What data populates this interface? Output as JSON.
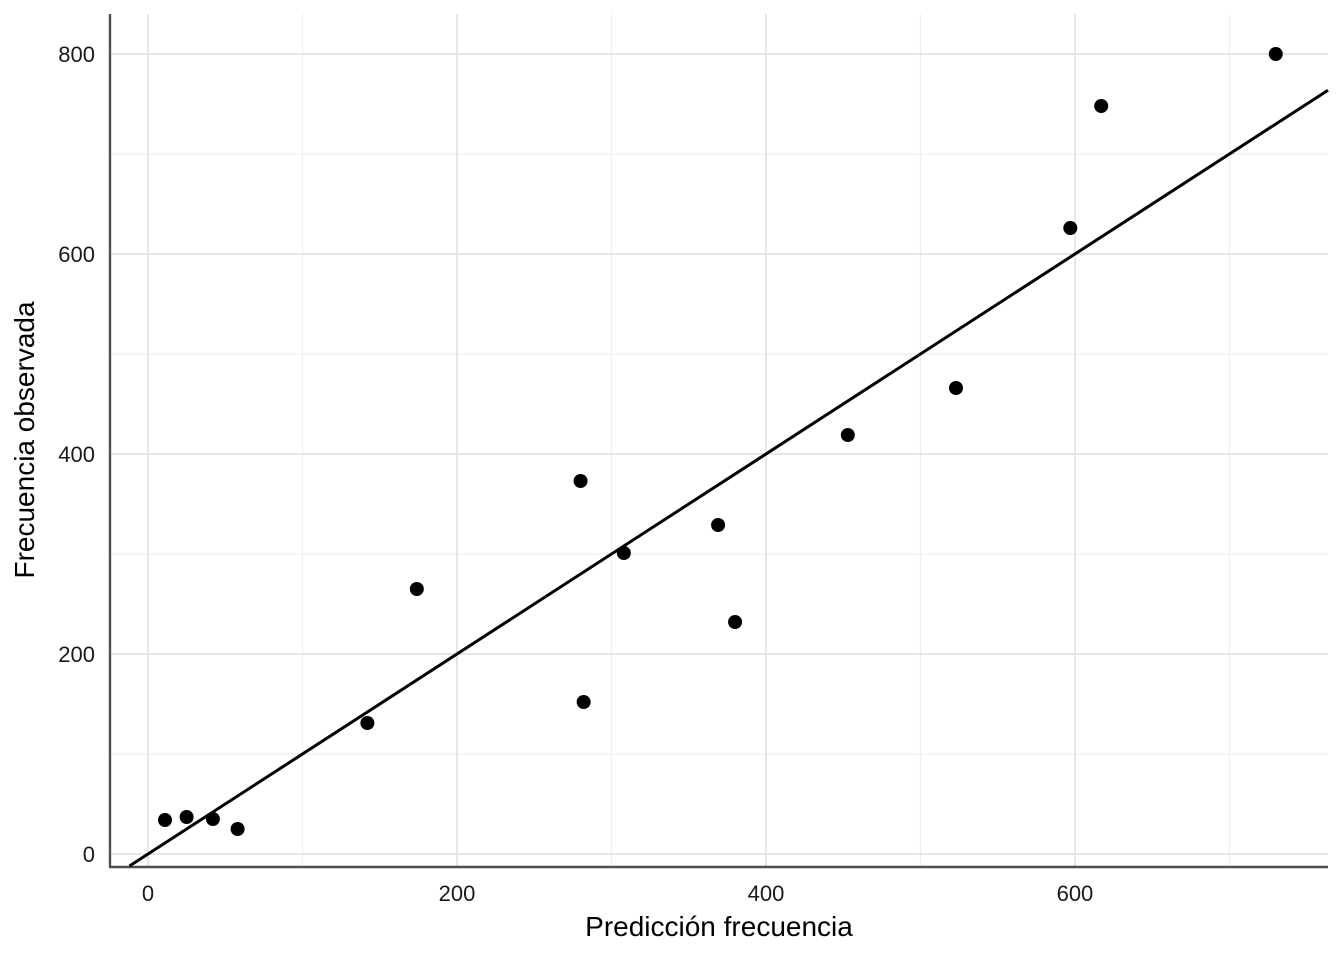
{
  "chart_data": {
    "type": "scatter",
    "title": "",
    "xlabel": "Predicción frecuencia",
    "ylabel": "Frecuencia observada",
    "points": [
      [
        11,
        34
      ],
      [
        25,
        37
      ],
      [
        42,
        35
      ],
      [
        58,
        25
      ],
      [
        142,
        131
      ],
      [
        174,
        265
      ],
      [
        280,
        373
      ],
      [
        282,
        152
      ],
      [
        308,
        301
      ],
      [
        369,
        329
      ],
      [
        380,
        232
      ],
      [
        453,
        419
      ],
      [
        523,
        466
      ],
      [
        597,
        626
      ],
      [
        617,
        748
      ],
      [
        730,
        800
      ]
    ],
    "reference_line": {
      "kind": "identity",
      "intercept": 0,
      "slope": 1
    },
    "x_ticks": [
      0,
      200,
      400,
      600
    ],
    "y_ticks": [
      0,
      200,
      400,
      600,
      800
    ],
    "x_minor_ticks": [
      100,
      300,
      500,
      700
    ],
    "y_minor_ticks": [
      100,
      300,
      500,
      700
    ],
    "x_range": [
      -24.6,
      763.8
    ],
    "y_range": [
      -12,
      840
    ],
    "grid": "major+minor",
    "legend": "none",
    "colors": {
      "background": "#ffffff",
      "point": "#000000",
      "reference_line": "#000000",
      "grid_major": "#e3e3e3",
      "grid_minor": "#efefef",
      "axis_spine": "#4e4e4e",
      "tick_label": "#1a1a1a",
      "axis_title": "#000000"
    }
  }
}
